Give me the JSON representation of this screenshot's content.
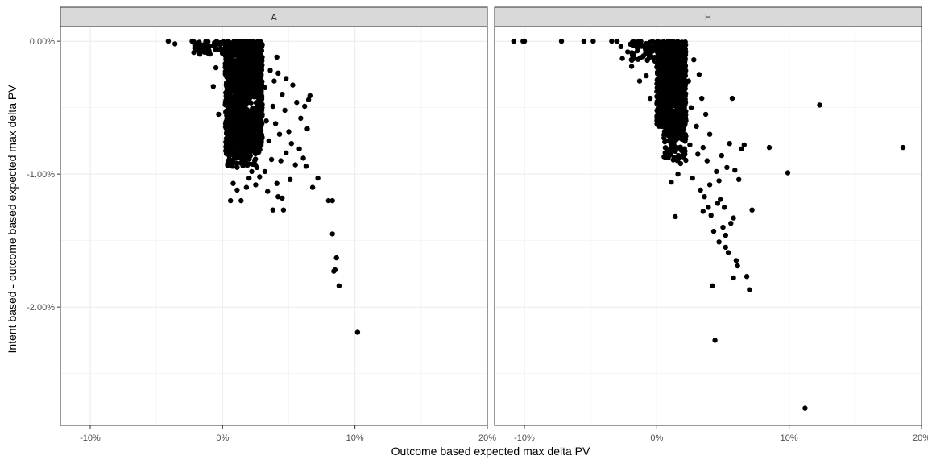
{
  "chart_data": {
    "type": "scatter",
    "xlabel": "Outcome based expected max delta PV",
    "ylabel": "Intent based - outcome based expected max delta PV",
    "xlim": [
      -0.1225,
      0.2
    ],
    "ylim": [
      -0.0289,
      0.0011
    ],
    "x_ticks": [
      {
        "value": -0.1,
        "label": "-10%"
      },
      {
        "value": 0.0,
        "label": "0%"
      },
      {
        "value": 0.1,
        "label": "10%"
      },
      {
        "value": 0.2,
        "label": "20%"
      }
    ],
    "y_ticks": [
      {
        "value": 0.0,
        "label": "0.00%"
      },
      {
        "value": -0.01,
        "label": "-1.00%"
      },
      {
        "value": -0.02,
        "label": "-2.00%"
      }
    ],
    "grid": true,
    "point_color": "#000000",
    "panels": [
      {
        "label": "A",
        "core_clusters": [
          {
            "x_min": 0.002,
            "x_max": 0.03,
            "y_min": -0.0085,
            "y_max": 0.0,
            "n": 1400
          },
          {
            "x_min": 0.003,
            "x_max": 0.025,
            "y_min": -0.0095,
            "y_max": -0.006,
            "n": 160
          },
          {
            "x_min": -0.022,
            "x_max": 0.002,
            "y_min": -0.001,
            "y_max": 0.0,
            "n": 50
          }
        ],
        "points": [
          [
            -0.041,
            0.0
          ],
          [
            -0.036,
            -0.0002
          ],
          [
            -0.023,
            0.0
          ],
          [
            -0.021,
            -0.0003
          ],
          [
            -0.019,
            -0.0006
          ],
          [
            -0.014,
            -0.0004
          ],
          [
            -0.01,
            -0.0008
          ],
          [
            -0.007,
            -0.0034
          ],
          [
            -0.005,
            -0.002
          ],
          [
            -0.003,
            -0.0055
          ],
          [
            0.008,
            -0.0107
          ],
          [
            0.011,
            -0.0112
          ],
          [
            0.014,
            -0.012
          ],
          [
            0.006,
            -0.012
          ],
          [
            0.018,
            -0.011
          ],
          [
            0.02,
            -0.0103
          ],
          [
            0.022,
            -0.0098
          ],
          [
            0.026,
            -0.0095
          ],
          [
            0.025,
            -0.0108
          ],
          [
            0.028,
            -0.0102
          ],
          [
            0.03,
            -0.0055
          ],
          [
            0.032,
            -0.0035
          ],
          [
            0.033,
            -0.006
          ],
          [
            0.035,
            -0.0075
          ],
          [
            0.036,
            -0.0022
          ],
          [
            0.037,
            -0.0089
          ],
          [
            0.038,
            -0.0049
          ],
          [
            0.039,
            -0.003
          ],
          [
            0.04,
            -0.0062
          ],
          [
            0.041,
            -0.0012
          ],
          [
            0.041,
            -0.0107
          ],
          [
            0.042,
            -0.0024
          ],
          [
            0.043,
            -0.007
          ],
          [
            0.044,
            -0.009
          ],
          [
            0.045,
            -0.004
          ],
          [
            0.045,
            -0.0118
          ],
          [
            0.046,
            -0.0127
          ],
          [
            0.047,
            -0.0052
          ],
          [
            0.048,
            -0.0028
          ],
          [
            0.048,
            -0.0084
          ],
          [
            0.05,
            -0.0068
          ],
          [
            0.051,
            -0.0104
          ],
          [
            0.052,
            -0.0077
          ],
          [
            0.053,
            -0.0033
          ],
          [
            0.055,
            -0.0093
          ],
          [
            0.056,
            -0.0046
          ],
          [
            0.058,
            -0.0081
          ],
          [
            0.059,
            -0.0058
          ],
          [
            0.061,
            -0.0088
          ],
          [
            0.062,
            -0.0049
          ],
          [
            0.063,
            -0.0094
          ],
          [
            0.064,
            -0.0066
          ],
          [
            0.065,
            -0.0044
          ],
          [
            0.066,
            -0.0041
          ],
          [
            0.068,
            -0.011
          ],
          [
            0.072,
            -0.0103
          ],
          [
            0.08,
            -0.012
          ],
          [
            0.083,
            -0.012
          ],
          [
            0.083,
            -0.0145
          ],
          [
            0.085,
            -0.0172
          ],
          [
            0.086,
            -0.0163
          ],
          [
            0.084,
            -0.0173
          ],
          [
            0.088,
            -0.0184
          ],
          [
            0.102,
            -0.0219
          ],
          [
            0.038,
            -0.0127
          ],
          [
            0.042,
            -0.0117
          ],
          [
            0.034,
            -0.0113
          ],
          [
            0.032,
            -0.0098
          ]
        ]
      },
      {
        "label": "H",
        "core_clusters": [
          {
            "x_min": 0.0,
            "x_max": 0.022,
            "y_min": -0.0065,
            "y_max": 0.0,
            "n": 1000
          },
          {
            "x_min": 0.005,
            "x_max": 0.022,
            "y_min": -0.009,
            "y_max": -0.0055,
            "n": 140
          },
          {
            "x_min": -0.02,
            "x_max": 0.003,
            "y_min": -0.0015,
            "y_max": 0.0,
            "n": 80
          }
        ],
        "points": [
          [
            -0.108,
            0.0
          ],
          [
            -0.101,
            0.0
          ],
          [
            -0.1,
            0.0
          ],
          [
            -0.072,
            0.0
          ],
          [
            -0.055,
            0.0
          ],
          [
            -0.048,
            0.0
          ],
          [
            -0.034,
            0.0
          ],
          [
            -0.03,
            0.0
          ],
          [
            -0.027,
            -0.0004
          ],
          [
            -0.026,
            -0.0013
          ],
          [
            -0.022,
            -0.0008
          ],
          [
            -0.019,
            -0.0019
          ],
          [
            -0.013,
            -0.003
          ],
          [
            -0.01,
            -0.0011
          ],
          [
            -0.008,
            -0.0026
          ],
          [
            -0.005,
            -0.0043
          ],
          [
            0.011,
            -0.0106
          ],
          [
            0.014,
            -0.0132
          ],
          [
            0.016,
            -0.01
          ],
          [
            0.018,
            -0.0092
          ],
          [
            0.02,
            -0.0087
          ],
          [
            0.022,
            -0.006
          ],
          [
            0.024,
            -0.003
          ],
          [
            0.025,
            -0.0078
          ],
          [
            0.026,
            -0.005
          ],
          [
            0.027,
            -0.0103
          ],
          [
            0.028,
            -0.0014
          ],
          [
            0.03,
            -0.0064
          ],
          [
            0.031,
            -0.0085
          ],
          [
            0.032,
            -0.0025
          ],
          [
            0.033,
            -0.0112
          ],
          [
            0.034,
            -0.0043
          ],
          [
            0.035,
            -0.008
          ],
          [
            0.036,
            -0.0117
          ],
          [
            0.037,
            -0.0055
          ],
          [
            0.038,
            -0.009
          ],
          [
            0.039,
            -0.0125
          ],
          [
            0.04,
            -0.007
          ],
          [
            0.041,
            -0.0131
          ],
          [
            0.042,
            -0.0184
          ],
          [
            0.043,
            -0.0143
          ],
          [
            0.044,
            -0.0225
          ],
          [
            0.045,
            -0.0098
          ],
          [
            0.046,
            -0.0122
          ],
          [
            0.047,
            -0.0151
          ],
          [
            0.048,
            -0.0119
          ],
          [
            0.049,
            -0.0086
          ],
          [
            0.05,
            -0.014
          ],
          [
            0.051,
            -0.0125
          ],
          [
            0.052,
            -0.0155
          ],
          [
            0.053,
            -0.0095
          ],
          [
            0.054,
            -0.0159
          ],
          [
            0.055,
            -0.0077
          ],
          [
            0.056,
            -0.0137
          ],
          [
            0.057,
            -0.0043
          ],
          [
            0.058,
            -0.0133
          ],
          [
            0.059,
            -0.0097
          ],
          [
            0.06,
            -0.0165
          ],
          [
            0.061,
            -0.0169
          ],
          [
            0.062,
            -0.0104
          ],
          [
            0.064,
            -0.0081
          ],
          [
            0.066,
            -0.0078
          ],
          [
            0.068,
            -0.0177
          ],
          [
            0.07,
            -0.0187
          ],
          [
            0.072,
            -0.0127
          ],
          [
            0.085,
            -0.008
          ],
          [
            0.099,
            -0.0099
          ],
          [
            0.112,
            -0.0276
          ],
          [
            0.123,
            -0.0048
          ],
          [
            0.186,
            -0.008
          ],
          [
            0.04,
            -0.0108
          ],
          [
            0.047,
            -0.0105
          ],
          [
            0.052,
            -0.0146
          ],
          [
            0.058,
            -0.0178
          ],
          [
            0.035,
            -0.0128
          ]
        ]
      }
    ]
  }
}
